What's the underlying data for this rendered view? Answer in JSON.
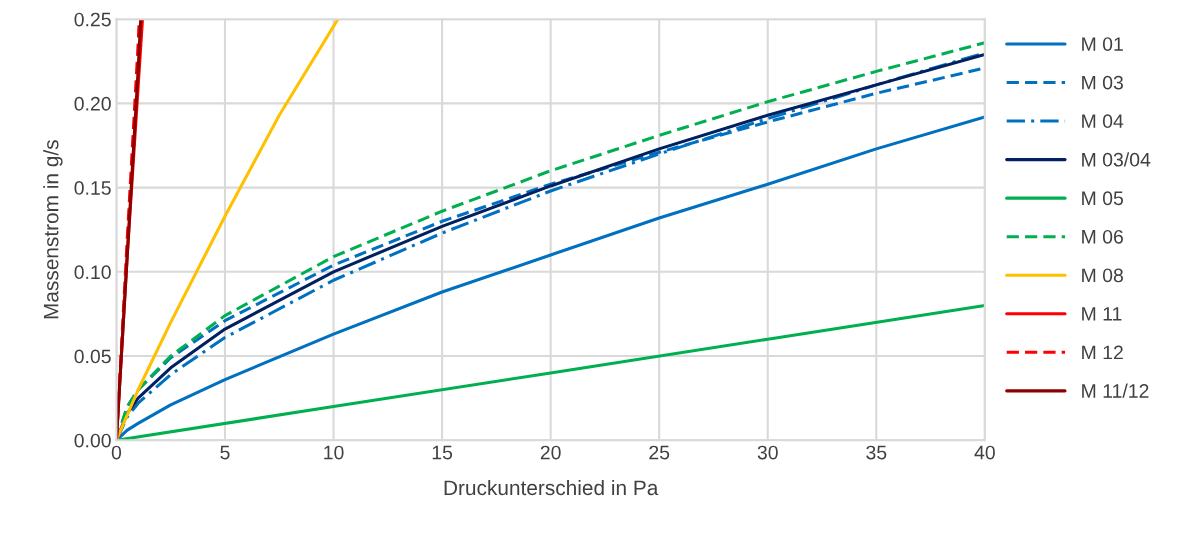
{
  "chart_data": {
    "type": "line",
    "xlabel": "Druckunterschied in Pa",
    "ylabel": "Massenstrom in g/s",
    "xlim": [
      0,
      40
    ],
    "xticks": [
      0,
      5,
      10,
      15,
      20,
      25,
      30,
      35,
      40
    ],
    "ylim": [
      0,
      0.25
    ],
    "yticks": [
      {
        "value": 0,
        "label": "0.00"
      },
      {
        "value": 0.05,
        "label": "0.05"
      },
      {
        "value": 0.1,
        "label": "0.10"
      },
      {
        "value": 0.15,
        "label": "0.15"
      },
      {
        "value": 0.2,
        "label": "0.20"
      },
      {
        "value": 0.25,
        "label": "0.25"
      }
    ],
    "grid": true,
    "legend": "right",
    "marker": "none",
    "series": [
      {
        "name": "M 01",
        "color": "#0070c0",
        "line_style": "solid",
        "x": [
          0,
          0.5,
          1,
          2.5,
          5,
          10,
          15,
          20,
          25,
          30,
          35,
          40
        ],
        "values": [
          0,
          0.006,
          0.01,
          0.021,
          0.036,
          0.063,
          0.088,
          0.11,
          0.132,
          0.152,
          0.173,
          0.192
        ]
      },
      {
        "name": "M 03",
        "color": "#0070c0",
        "line_style": "dashed",
        "x": [
          0,
          0.5,
          1,
          2.5,
          5,
          10,
          15,
          20,
          25,
          30,
          35,
          40
        ],
        "values": [
          0,
          0.02,
          0.03,
          0.049,
          0.071,
          0.104,
          0.13,
          0.152,
          0.171,
          0.189,
          0.206,
          0.221
        ]
      },
      {
        "name": "M 04",
        "color": "#0070c0",
        "line_style": "dashdot",
        "x": [
          0,
          0.5,
          1,
          2.5,
          5,
          10,
          15,
          20,
          25,
          30,
          35,
          40
        ],
        "values": [
          0,
          0.014,
          0.022,
          0.039,
          0.061,
          0.095,
          0.123,
          0.148,
          0.17,
          0.191,
          0.211,
          0.23
        ]
      },
      {
        "name": "M 03/04",
        "color": "#002060",
        "line_style": "solid",
        "x": [
          0,
          0.5,
          1,
          2.5,
          5,
          10,
          15,
          20,
          25,
          30,
          35,
          40
        ],
        "values": [
          0,
          0.016,
          0.025,
          0.043,
          0.066,
          0.1,
          0.127,
          0.151,
          0.173,
          0.193,
          0.211,
          0.229
        ]
      },
      {
        "name": "M 05",
        "color": "#00b050",
        "line_style": "solid",
        "x": [
          0,
          10,
          20,
          30,
          40
        ],
        "values": [
          0,
          0.02,
          0.04,
          0.06,
          0.08
        ]
      },
      {
        "name": "M 06",
        "color": "#00b050",
        "line_style": "dashed",
        "x": [
          0,
          0.5,
          1,
          2.5,
          5,
          10,
          15,
          20,
          25,
          30,
          35,
          40
        ],
        "values": [
          0,
          0.02,
          0.03,
          0.05,
          0.074,
          0.109,
          0.136,
          0.16,
          0.181,
          0.201,
          0.219,
          0.236
        ]
      },
      {
        "name": "M 08",
        "color": "#ffc000",
        "line_style": "solid",
        "x": [
          0,
          1,
          2.5,
          5,
          7.5,
          10.2
        ],
        "values": [
          0,
          0.03,
          0.07,
          0.133,
          0.193,
          0.25
        ]
      },
      {
        "name": "M 11",
        "color": "#ff0000",
        "line_style": "solid",
        "x": [
          0,
          0.5,
          1,
          1.2
        ],
        "values": [
          0,
          0.11,
          0.21,
          0.25
        ]
      },
      {
        "name": "M 12",
        "color": "#ff0000",
        "line_style": "dashed",
        "x": [
          0,
          0.5,
          1,
          1.05
        ],
        "values": [
          0,
          0.12,
          0.235,
          0.25
        ]
      },
      {
        "name": "M 11/12",
        "color": "#8b0000",
        "line_style": "solid",
        "x": [
          0,
          0.5,
          1,
          1.12
        ],
        "values": [
          0,
          0.11,
          0.22,
          0.25
        ]
      }
    ]
  }
}
